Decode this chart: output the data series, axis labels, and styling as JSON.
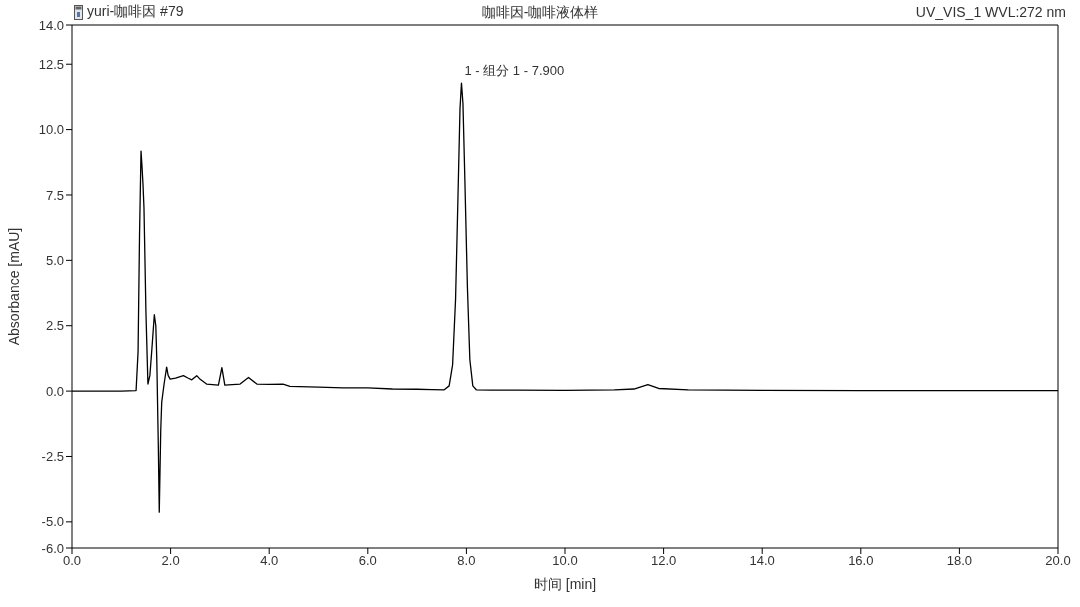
{
  "chart_data": {
    "type": "line",
    "title": "咖啡因-咖啡液体样",
    "xlabel": "时间 [min]",
    "ylabel": "Absorbance [mAU]",
    "annotations": [
      "yuri-咖啡因 #79",
      "UV_VIS_1 WVL:272 nm",
      {
        "text": "1 - 组分 1 - 7.900",
        "x": 7.9,
        "y": 11.78
      }
    ],
    "series": [
      {
        "color": "#000000",
        "x": [
          0,
          0.5,
          1.0,
          1.3,
          1.34,
          1.37,
          1.4,
          1.42,
          1.44,
          1.46,
          1.5,
          1.54,
          1.58,
          1.62,
          1.67,
          1.7,
          1.72,
          1.75,
          1.77,
          1.8,
          1.82,
          1.87,
          1.92,
          1.95,
          1.99,
          2.1,
          2.26,
          2.35,
          2.43,
          2.53,
          2.6,
          2.73,
          2.97,
          3.04,
          3.1,
          3.25,
          3.41,
          3.58,
          3.75,
          4.0,
          4.28,
          4.42,
          5.0,
          5.5,
          6.0,
          6.5,
          7.0,
          7.3,
          7.55,
          7.65,
          7.72,
          7.78,
          7.83,
          7.87,
          7.9,
          7.93,
          7.97,
          8.02,
          8.07,
          8.13,
          8.2,
          8.5,
          9.0,
          10.0,
          11.0,
          11.4,
          11.68,
          11.9,
          12.5,
          14.0,
          16.0,
          18.0,
          20.0
        ],
        "values": [
          0,
          0,
          0,
          0.02,
          1.5,
          6.0,
          9.18,
          8.6,
          7.9,
          7.0,
          3.0,
          0.27,
          0.6,
          1.6,
          2.92,
          2.5,
          1.2,
          -2.0,
          -4.63,
          -1.5,
          -0.42,
          0.3,
          0.92,
          0.6,
          0.46,
          0.5,
          0.59,
          0.5,
          0.43,
          0.59,
          0.45,
          0.27,
          0.23,
          0.9,
          0.23,
          0.25,
          0.27,
          0.52,
          0.27,
          0.26,
          0.27,
          0.18,
          0.15,
          0.12,
          0.12,
          0.08,
          0.07,
          0.06,
          0.05,
          0.2,
          1.0,
          3.5,
          7.5,
          10.8,
          11.78,
          11.0,
          8.0,
          4.0,
          1.2,
          0.2,
          0.05,
          0.04,
          0.04,
          0.03,
          0.05,
          0.08,
          0.25,
          0.1,
          0.05,
          0.03,
          0.02,
          0.02,
          0.02
        ]
      }
    ],
    "xlim": [
      0,
      20
    ],
    "xticks": [
      {
        "value": 0,
        "label": "0.0"
      },
      {
        "value": 2,
        "label": "2.0"
      },
      {
        "value": 4,
        "label": "4.0"
      },
      {
        "value": 6,
        "label": "6.0"
      },
      {
        "value": 8,
        "label": "8.0"
      },
      {
        "value": 10,
        "label": "10.0"
      },
      {
        "value": 12,
        "label": "12.0"
      },
      {
        "value": 14,
        "label": "14.0"
      },
      {
        "value": 16,
        "label": "16.0"
      },
      {
        "value": 18,
        "label": "18.0"
      },
      {
        "value": 20,
        "label": "20.0"
      }
    ],
    "ylim": [
      -6,
      14
    ],
    "yticks": [
      {
        "value": -6,
        "label": "-6.0"
      },
      {
        "value": -5,
        "label": "-5.0"
      },
      -2.5,
      {
        "value": 0,
        "label": "0.0"
      },
      2.5,
      {
        "value": 5,
        "label": "5.0"
      },
      7.5,
      {
        "value": 10,
        "label": "10.0"
      },
      12.5,
      {
        "value": 14,
        "label": "14.0"
      }
    ],
    "grid": false,
    "marker": "none"
  }
}
